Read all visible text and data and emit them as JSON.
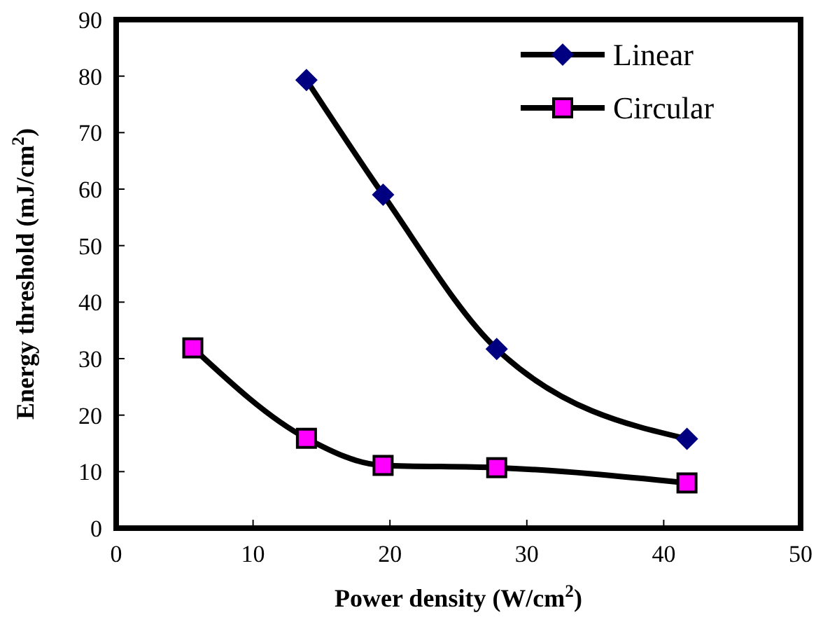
{
  "chart_data": {
    "type": "line",
    "xlabel": "Power density (W/cm$^{2}$)",
    "ylabel": "Energy threshold (mJ/cm$^{2}$)",
    "xlim": [
      0,
      50
    ],
    "xticks": [
      0,
      10,
      20,
      30,
      40,
      50
    ],
    "ylim": [
      0,
      90
    ],
    "yticks": [
      0,
      10,
      20,
      30,
      40,
      50,
      60,
      70,
      80,
      90
    ],
    "grid": false,
    "legend": "top right",
    "line_style": "solid",
    "series": [
      {
        "name": "Linear",
        "color": "#000080",
        "marker": "diamond",
        "x": [
          13.9,
          19.5,
          27.8,
          41.7
        ],
        "values": [
          79.3,
          59,
          31.7,
          15.8
        ]
      },
      {
        "name": "Circular",
        "color": "#ff00ff",
        "marker": "square",
        "x": [
          5.6,
          13.9,
          19.5,
          27.8,
          41.7
        ],
        "values": [
          31.9,
          15.9,
          11.1,
          10.7,
          8
        ]
      }
    ]
  }
}
